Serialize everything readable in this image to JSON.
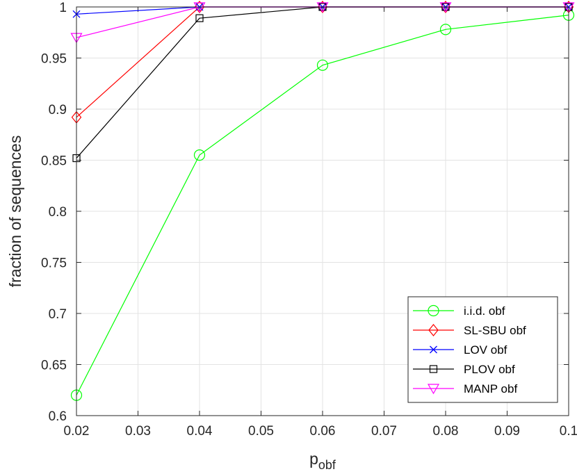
{
  "chart_data": {
    "type": "line",
    "title": "",
    "xlabel": {
      "main": "p",
      "subscript": "obf"
    },
    "ylabel": "fraction of sequences",
    "x": [
      0.02,
      0.04,
      0.06,
      0.08,
      0.1
    ],
    "xlim": [
      0.02,
      0.1
    ],
    "ylim": [
      0.6,
      1
    ],
    "xticks": [
      0.02,
      0.03,
      0.04,
      0.05,
      0.06,
      0.07,
      0.08,
      0.09,
      0.1
    ],
    "xtick_labels": [
      "0.02",
      "0.03",
      "0.04",
      "0.05",
      "0.06",
      "0.07",
      "0.08",
      "0.09",
      "0.1"
    ],
    "yticks": [
      0.6,
      0.65,
      0.7,
      0.75,
      0.8,
      0.85,
      0.9,
      0.95,
      1
    ],
    "ytick_labels": [
      "0.6",
      "0.65",
      "0.7",
      "0.75",
      "0.8",
      "0.85",
      "0.9",
      "0.95",
      "1"
    ],
    "grid": true,
    "legend_position": "bottom-right",
    "series": [
      {
        "name": "i.i.d. obf",
        "color": "#00ff00",
        "marker": "circle",
        "values": [
          0.62,
          0.855,
          0.943,
          0.978,
          0.992
        ]
      },
      {
        "name": "SL-SBU obf",
        "color": "#ff0000",
        "marker": "diamond",
        "values": [
          0.892,
          1,
          1,
          1,
          1
        ]
      },
      {
        "name": "LOV obf",
        "color": "#0000ff",
        "marker": "x",
        "values": [
          0.993,
          1,
          1,
          1,
          1
        ]
      },
      {
        "name": "PLOV obf",
        "color": "#000000",
        "marker": "square",
        "values": [
          0.852,
          0.989,
          1,
          1,
          1
        ]
      },
      {
        "name": "MANP obf",
        "color": "#ff00ff",
        "marker": "triangle-down",
        "values": [
          0.97,
          1,
          1,
          1,
          1
        ]
      }
    ]
  }
}
